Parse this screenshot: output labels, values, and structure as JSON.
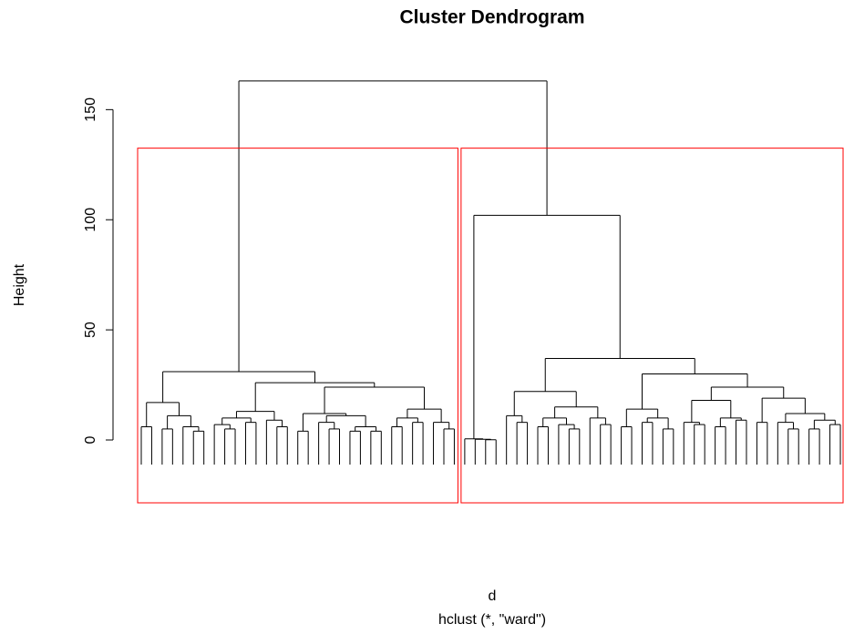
{
  "chart_data": {
    "type": "dendrogram",
    "title": "Cluster Dendrogram",
    "ylabel": "Height",
    "xlabel": "d",
    "subtitle": "hclust (*, \"ward\")",
    "ylim": [
      0,
      170
    ],
    "yticks": [
      0,
      50,
      100,
      150
    ],
    "rect_k": 2,
    "rect_color": "#ff0000",
    "color": "#000000",
    "tree": {
      "height": 163,
      "children": [
        {
          "height": 31,
          "children": [
            {
              "height": 17,
              "children": [
                {
                  "height": 6,
                  "children": [
                    null,
                    null
                  ]
                },
                {
                  "height": 11,
                  "children": [
                    {
                      "height": 5,
                      "children": [
                        null,
                        null
                      ]
                    },
                    {
                      "height": 6,
                      "children": [
                        null,
                        {
                          "height": 4,
                          "children": [
                            null,
                            null
                          ]
                        }
                      ]
                    }
                  ]
                }
              ]
            },
            {
              "height": 26,
              "children": [
                {
                  "height": 13,
                  "children": [
                    {
                      "height": 10,
                      "children": [
                        {
                          "height": 7,
                          "children": [
                            null,
                            {
                              "height": 5,
                              "children": [
                                null,
                                null
                              ]
                            }
                          ]
                        },
                        {
                          "height": 8,
                          "children": [
                            null,
                            null
                          ]
                        }
                      ]
                    },
                    {
                      "height": 9,
                      "children": [
                        null,
                        {
                          "height": 6,
                          "children": [
                            null,
                            null
                          ]
                        }
                      ]
                    }
                  ]
                },
                {
                  "height": 24,
                  "children": [
                    {
                      "height": 12,
                      "children": [
                        {
                          "height": 4,
                          "children": [
                            null,
                            null
                          ]
                        },
                        {
                          "height": 11,
                          "children": [
                            {
                              "height": 8,
                              "children": [
                                null,
                                {
                                  "height": 5,
                                  "children": [
                                    null,
                                    null
                                  ]
                                }
                              ]
                            },
                            {
                              "height": 6,
                              "children": [
                                {
                                  "height": 4,
                                  "children": [
                                    null,
                                    null
                                  ]
                                },
                                {
                                  "height": 4,
                                  "children": [
                                    null,
                                    null
                                  ]
                                }
                              ]
                            }
                          ]
                        }
                      ]
                    },
                    {
                      "height": 14,
                      "children": [
                        {
                          "height": 10,
                          "children": [
                            {
                              "height": 6,
                              "children": [
                                null,
                                null
                              ]
                            },
                            {
                              "height": 8,
                              "children": [
                                null,
                                null
                              ]
                            }
                          ]
                        },
                        {
                          "height": 8,
                          "children": [
                            null,
                            {
                              "height": 5,
                              "children": [
                                null,
                                null
                              ]
                            }
                          ]
                        }
                      ]
                    }
                  ]
                }
              ]
            }
          ]
        },
        {
          "height": 102,
          "children": [
            {
              "height": 0.5,
              "children": [
                null,
                {
                  "height": 0.3,
                  "children": [
                    null,
                    {
                      "height": 0.1,
                      "children": [
                        null,
                        null
                      ]
                    }
                  ]
                }
              ]
            },
            {
              "height": 37,
              "children": [
                {
                  "height": 22,
                  "children": [
                    {
                      "height": 11,
                      "children": [
                        null,
                        {
                          "height": 8,
                          "children": [
                            null,
                            null
                          ]
                        }
                      ]
                    },
                    {
                      "height": 15,
                      "children": [
                        {
                          "height": 10,
                          "children": [
                            {
                              "height": 6,
                              "children": [
                                null,
                                null
                              ]
                            },
                            {
                              "height": 7,
                              "children": [
                                null,
                                {
                                  "height": 5,
                                  "children": [
                                    null,
                                    null
                                  ]
                                }
                              ]
                            }
                          ]
                        },
                        {
                          "height": 10,
                          "children": [
                            null,
                            {
                              "height": 7,
                              "children": [
                                null,
                                null
                              ]
                            }
                          ]
                        }
                      ]
                    }
                  ]
                },
                {
                  "height": 30,
                  "children": [
                    {
                      "height": 14,
                      "children": [
                        {
                          "height": 6,
                          "children": [
                            null,
                            null
                          ]
                        },
                        {
                          "height": 10,
                          "children": [
                            {
                              "height": 8,
                              "children": [
                                null,
                                null
                              ]
                            },
                            {
                              "height": 5,
                              "children": [
                                null,
                                null
                              ]
                            }
                          ]
                        }
                      ]
                    },
                    {
                      "height": 24,
                      "children": [
                        {
                          "height": 18,
                          "children": [
                            {
                              "height": 8,
                              "children": [
                                null,
                                {
                                  "height": 7,
                                  "children": [
                                    null,
                                    null
                                  ]
                                }
                              ]
                            },
                            {
                              "height": 10,
                              "children": [
                                {
                                  "height": 6,
                                  "children": [
                                    null,
                                    null
                                  ]
                                },
                                {
                                  "height": 9,
                                  "children": [
                                    null,
                                    null
                                  ]
                                }
                              ]
                            }
                          ]
                        },
                        {
                          "height": 19,
                          "children": [
                            {
                              "height": 8,
                              "children": [
                                null,
                                null
                              ]
                            },
                            {
                              "height": 12,
                              "children": [
                                {
                                  "height": 8,
                                  "children": [
                                    null,
                                    {
                                      "height": 5,
                                      "children": [
                                        null,
                                        null
                                      ]
                                    }
                                  ]
                                },
                                {
                                  "height": 9,
                                  "children": [
                                    {
                                      "height": 5,
                                      "children": [
                                        null,
                                        null
                                      ]
                                    },
                                    {
                                      "height": 7,
                                      "children": [
                                        null,
                                        null
                                      ]
                                    }
                                  ]
                                }
                              ]
                            }
                          ]
                        }
                      ]
                    }
                  ]
                }
              ]
            }
          ]
        }
      ]
    }
  }
}
